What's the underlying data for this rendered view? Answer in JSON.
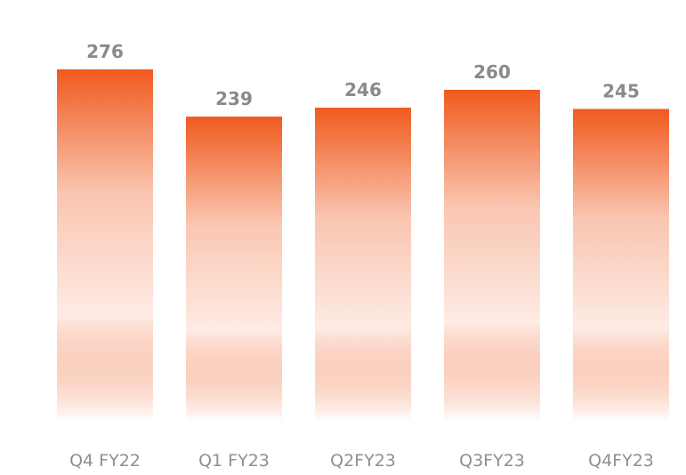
{
  "chart_data": {
    "type": "bar",
    "categories": [
      "Q4 FY22",
      "Q1 FY23",
      "Q2FY23",
      "Q3FY23",
      "Q4FY23"
    ],
    "values": [
      276,
      239,
      246,
      260,
      245
    ],
    "value_labels": [
      "276",
      "239",
      "246",
      "260",
      "245"
    ],
    "title": "",
    "xlabel": "",
    "ylabel": "",
    "ylim": [
      0,
      276
    ],
    "grid": false,
    "legend": "none",
    "colors": {
      "bar_top": "#f05a1e",
      "bar_bottom": "#ffffff",
      "label_text": "#8a8a8a",
      "tick_text": "#8f8f8f"
    }
  }
}
